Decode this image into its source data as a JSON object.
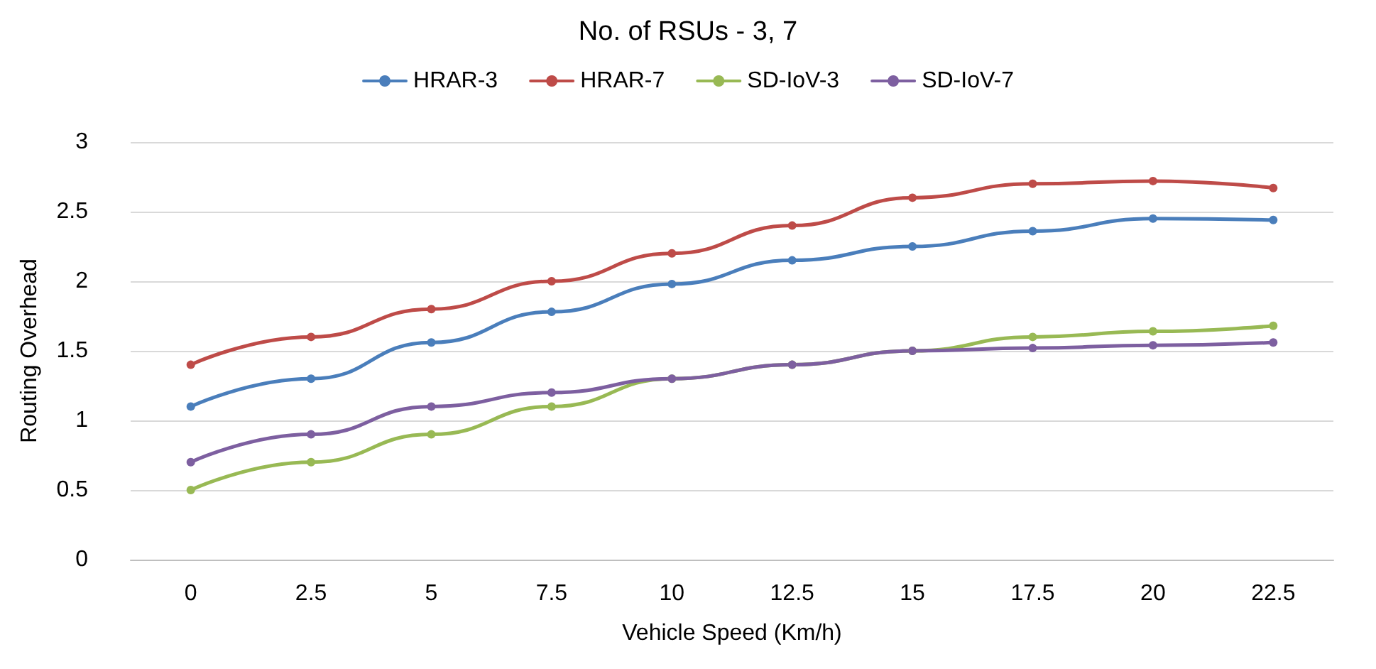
{
  "chart_data": {
    "type": "line",
    "title": "No. of RSUs - 3, 7",
    "xlabel": "Vehicle Speed (Km/h)",
    "ylabel": "Routing Overhead",
    "categories": [
      "0",
      "2.5",
      "5",
      "7.5",
      "10",
      "12.5",
      "15",
      "17.5",
      "20",
      "22.5"
    ],
    "series": [
      {
        "name": "HRAR-3",
        "color": "#4a7ebb",
        "values": [
          1.1,
          1.3,
          1.56,
          1.78,
          1.98,
          2.15,
          2.25,
          2.36,
          2.45,
          2.44
        ]
      },
      {
        "name": "HRAR-7",
        "color": "#be4b48",
        "values": [
          1.4,
          1.6,
          1.8,
          2.0,
          2.2,
          2.4,
          2.6,
          2.7,
          2.72,
          2.67
        ]
      },
      {
        "name": "SD-IoV-3",
        "color": "#98b954",
        "values": [
          0.5,
          0.7,
          0.9,
          1.1,
          1.3,
          1.4,
          1.5,
          1.6,
          1.64,
          1.68
        ]
      },
      {
        "name": "SD-IoV-7",
        "color": "#7d5fa0",
        "values": [
          0.7,
          0.9,
          1.1,
          1.2,
          1.3,
          1.4,
          1.5,
          1.52,
          1.54,
          1.56
        ]
      }
    ],
    "ylim": [
      0,
      3
    ],
    "yticks": [
      0,
      0.5,
      1,
      1.5,
      2,
      2.5,
      3
    ],
    "grid": "y",
    "legend": "top",
    "marker": "circle",
    "line_style": "solid"
  }
}
